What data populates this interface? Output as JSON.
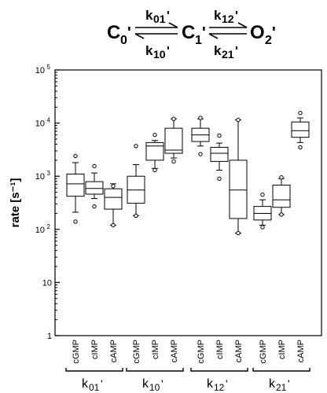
{
  "scheme": {
    "states": [
      {
        "base": "C",
        "sub": "0",
        "prime": "'"
      },
      {
        "base": "C",
        "sub": "1",
        "prime": "'"
      },
      {
        "base": "O",
        "sub": "2",
        "prime": "'"
      }
    ],
    "rates": [
      {
        "base": "k",
        "sub": "01",
        "prime": "'"
      },
      {
        "base": "k",
        "sub": "10",
        "prime": "'"
      },
      {
        "base": "k",
        "sub": "12",
        "prime": "'"
      },
      {
        "base": "k",
        "sub": "21",
        "prime": "'"
      }
    ]
  },
  "chart_data": {
    "type": "box",
    "y_scale": "log",
    "ylim": [
      1,
      100000
    ],
    "ylabel": "rate [s⁻¹]",
    "y_ticks": [
      {
        "value": 1,
        "label": "1"
      },
      {
        "value": 10,
        "label": "10"
      },
      {
        "value": 100,
        "label": "10",
        "exp": "2"
      },
      {
        "value": 1000,
        "label": "10",
        "exp": "3"
      },
      {
        "value": 10000,
        "label": "10",
        "exp": "4"
      },
      {
        "value": 100000,
        "label": "10",
        "exp": "5"
      }
    ],
    "groups": [
      {
        "label": {
          "base": "k",
          "sub": "01",
          "prime": "'"
        },
        "categories": [
          "cGMP",
          "cIMP",
          "cAMP"
        ]
      },
      {
        "label": {
          "base": "k",
          "sub": "10",
          "prime": "'"
        },
        "categories": [
          "cGMP",
          "cIMP",
          "cAMP"
        ]
      },
      {
        "label": {
          "base": "k",
          "sub": "12",
          "prime": "'"
        },
        "categories": [
          "cGMP",
          "cIMP",
          "cAMP"
        ]
      },
      {
        "label": {
          "base": "k",
          "sub": "21",
          "prime": "'"
        },
        "categories": [
          "cGMP",
          "cIMP",
          "cAMP"
        ]
      }
    ],
    "boxes": [
      {
        "group": 0,
        "category": "cGMP",
        "min": 210,
        "q1": 420,
        "median": 720,
        "q3": 1100,
        "max": 1800,
        "outliers": [
          2400,
          140
        ]
      },
      {
        "group": 0,
        "category": "cIMP",
        "min": 380,
        "q1": 460,
        "median": 590,
        "q3": 790,
        "max": 1150,
        "outliers": [
          1550,
          270
        ]
      },
      {
        "group": 0,
        "category": "cAMP",
        "min": 120,
        "q1": 240,
        "median": 400,
        "q3": 580,
        "max": 720,
        "outliers": [
          650,
          120
        ]
      },
      {
        "group": 1,
        "category": "cGMP",
        "min": 180,
        "q1": 310,
        "median": 550,
        "q3": 1000,
        "max": 1650,
        "outliers": [
          3700,
          180
        ]
      },
      {
        "group": 1,
        "category": "cIMP",
        "min": 1400,
        "q1": 2000,
        "median": 3700,
        "q3": 4300,
        "max": 4700,
        "outliers": [
          6000,
          1300
        ]
      },
      {
        "group": 1,
        "category": "cAMP",
        "min": 2200,
        "q1": 2700,
        "median": 3100,
        "q3": 8000,
        "max": 12000,
        "outliers": [
          12000,
          1900
        ]
      },
      {
        "group": 2,
        "category": "cGMP",
        "min": 3700,
        "q1": 4500,
        "median": 6000,
        "q3": 8000,
        "max": 12000,
        "outliers": [
          12500,
          2600
        ]
      },
      {
        "group": 2,
        "category": "cIMP",
        "min": 1300,
        "q1": 1900,
        "median": 2700,
        "q3": 3500,
        "max": 4200,
        "outliers": [
          5800,
          900
        ]
      },
      {
        "group": 2,
        "category": "cAMP",
        "min": 85,
        "q1": 160,
        "median": 550,
        "q3": 2000,
        "max": 11500,
        "outliers": [
          11500,
          85
        ]
      },
      {
        "group": 3,
        "category": "cGMP",
        "min": 120,
        "q1": 150,
        "median": 200,
        "q3": 270,
        "max": 360,
        "outliers": [
          450,
          110
        ]
      },
      {
        "group": 3,
        "category": "cIMP",
        "min": 190,
        "q1": 260,
        "median": 360,
        "q3": 680,
        "max": 900,
        "outliers": [
          950,
          190
        ]
      },
      {
        "group": 3,
        "category": "cAMP",
        "min": 4300,
        "q1": 5400,
        "median": 7200,
        "q3": 10500,
        "max": 12500,
        "outliers": [
          15500,
          3500
        ]
      }
    ]
  }
}
